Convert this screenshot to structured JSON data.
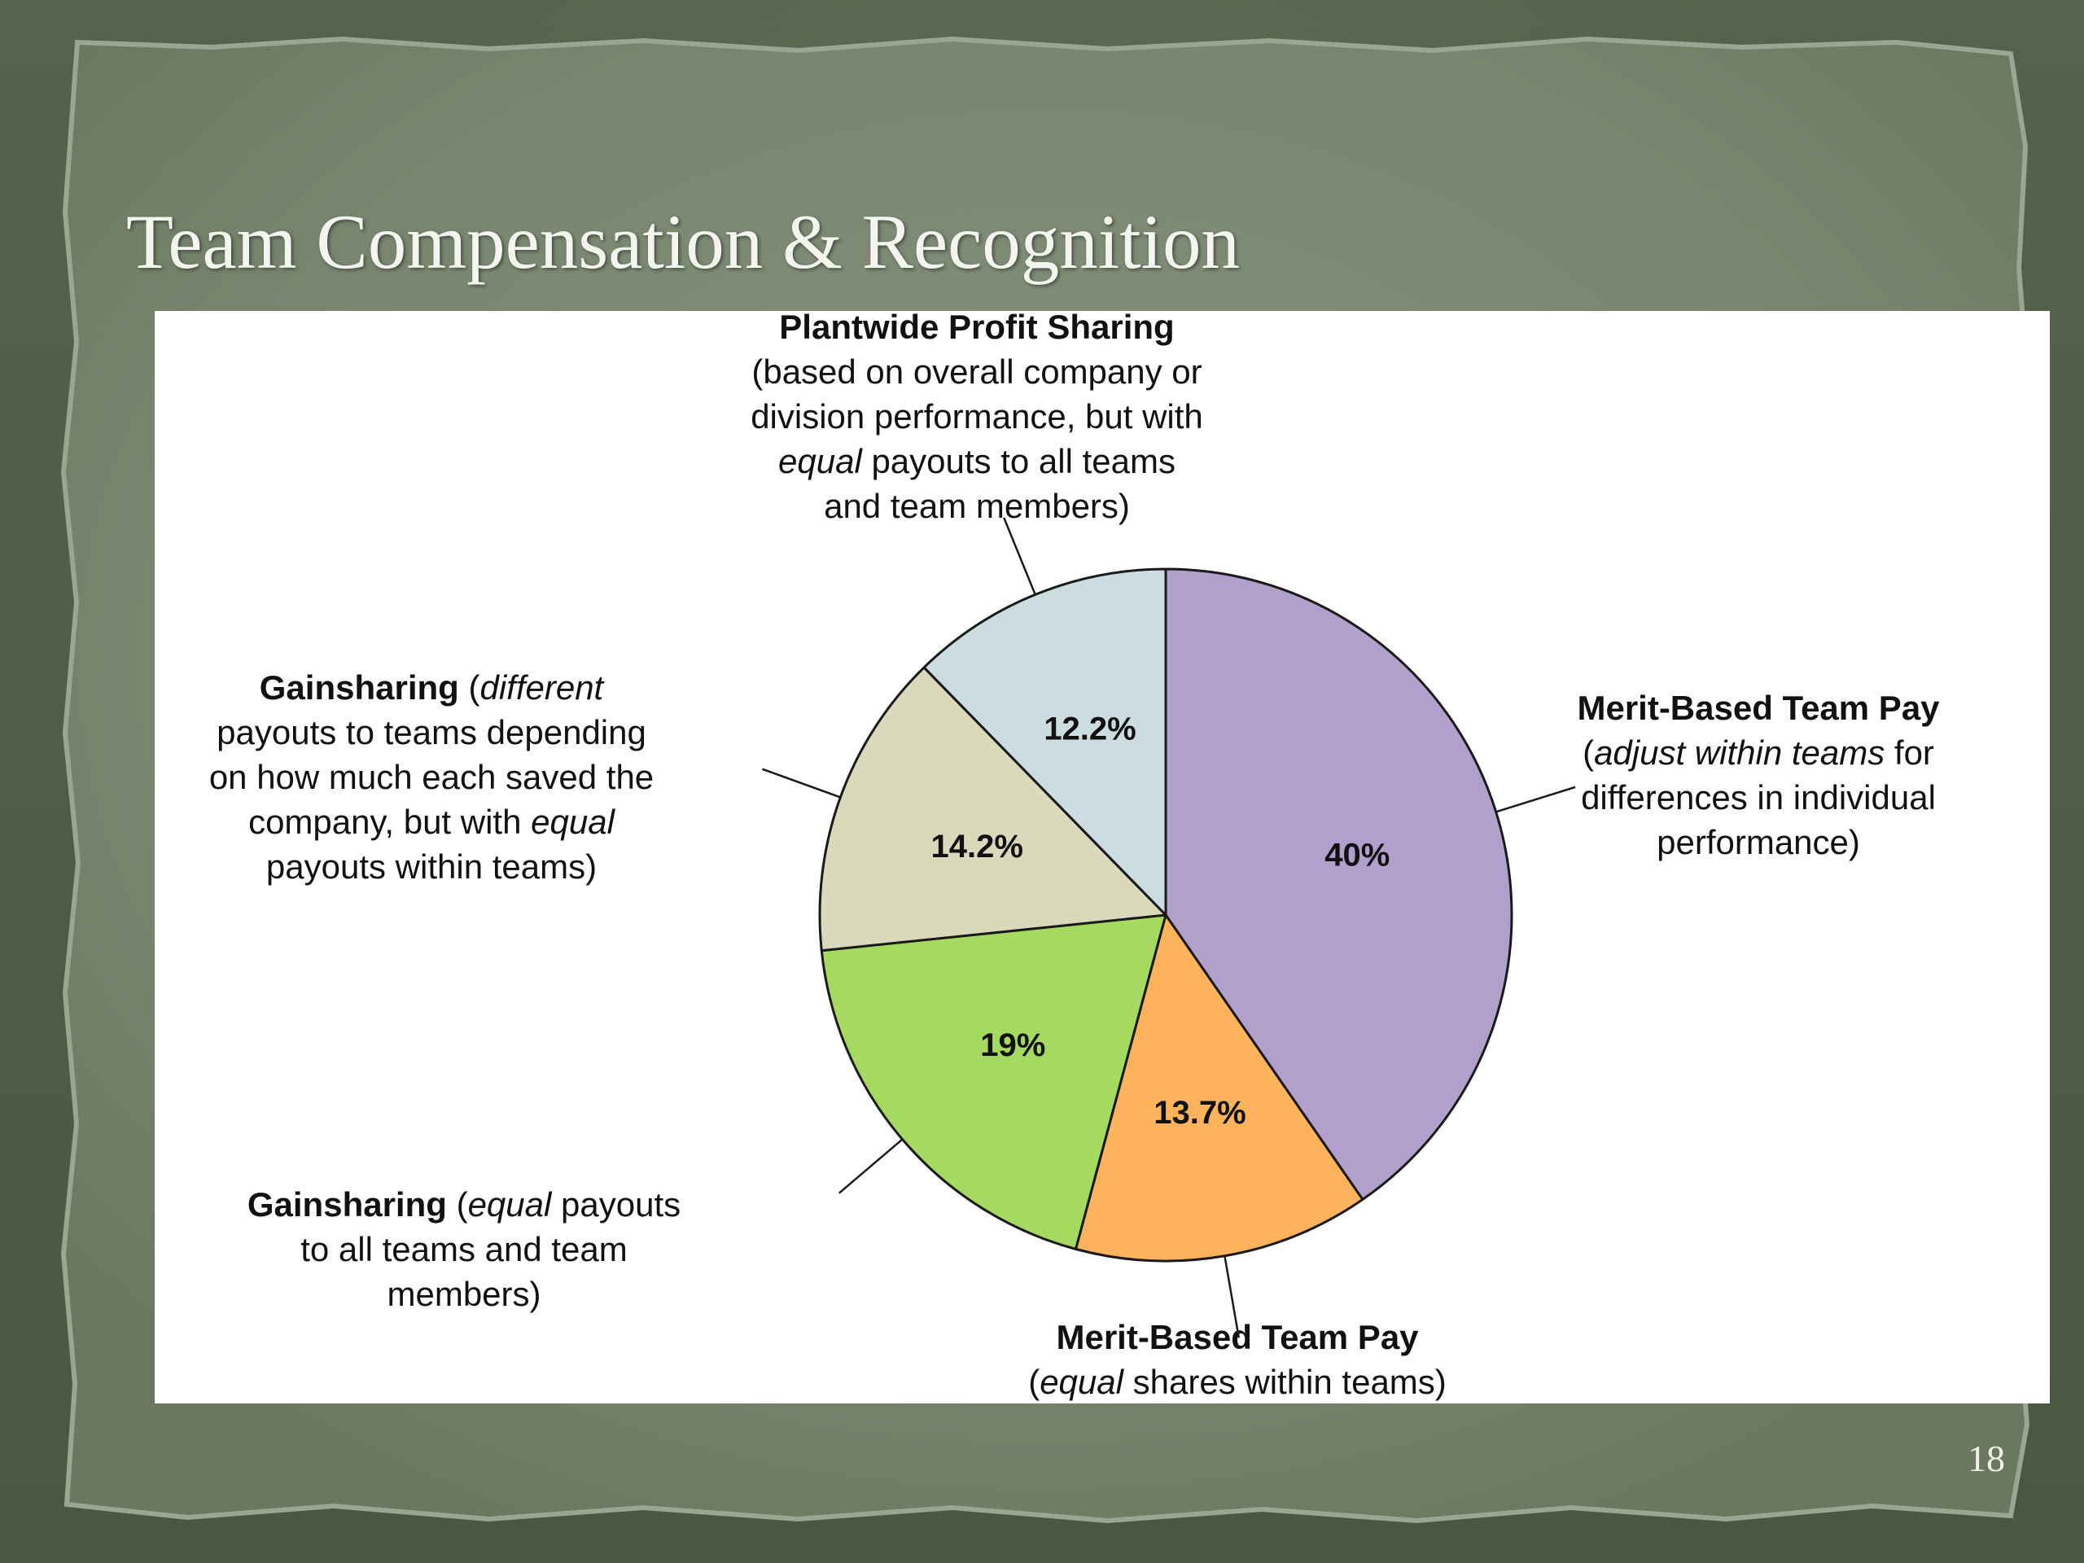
{
  "slide": {
    "title": "Team Compensation & Recognition",
    "page_number": "18"
  },
  "colors": {
    "background": "#4f5e46",
    "paper": "#7b8873",
    "slice_purple": "#b19fcc",
    "slice_orange": "#fdb25c",
    "slice_green": "#a6d95f",
    "slice_tan": "#dbd9bb",
    "slice_blue": "#cbdde0"
  },
  "chart_data": {
    "type": "pie",
    "title": "",
    "start": "top",
    "direction": "clockwise",
    "slices": [
      {
        "name": "Merit-Based Team Pay (adjust within teams for differences in individual performance)",
        "value": 40,
        "label": "40%",
        "color": "#b19fcc"
      },
      {
        "name": "Merit-Based Team Pay (equal shares within teams)",
        "value": 13.7,
        "label": "13.7%",
        "color": "#fdb25c"
      },
      {
        "name": "Gainsharing (equal payouts to all teams and team members)",
        "value": 19,
        "label": "19%",
        "color": "#a6d95f"
      },
      {
        "name": "Gainsharing (different payouts to teams depending on how much each saved the company, but with equal payouts within teams)",
        "value": 14.2,
        "label": "14.2%",
        "color": "#dbd9bb"
      },
      {
        "name": "Plantwide Profit Sharing (based on overall company or division performance, but with equal payouts to all teams and team members)",
        "value": 12.2,
        "label": "12.2%",
        "color": "#cbdde0"
      }
    ],
    "callouts": [
      {
        "lines": [
          [
            {
              "text": "Merit-Based Team Pay",
              "style": "bold"
            }
          ],
          [
            {
              "text": "(",
              "style": "normal"
            },
            {
              "text": "adjust within teams",
              "style": "italic"
            },
            {
              "text": " for",
              "style": "normal"
            }
          ],
          [
            {
              "text": "differences in individual",
              "style": "normal"
            }
          ],
          [
            {
              "text": "performance)",
              "style": "normal"
            }
          ]
        ]
      },
      {
        "lines": [
          [
            {
              "text": "Merit-Based Team Pay",
              "style": "bold"
            }
          ],
          [
            {
              "text": "(",
              "style": "normal"
            },
            {
              "text": "equal",
              "style": "italic"
            },
            {
              "text": " shares within teams)",
              "style": "normal"
            }
          ]
        ]
      },
      {
        "lines": [
          [
            {
              "text": "Gainsharing",
              "style": "bold"
            },
            {
              "text": " (",
              "style": "normal"
            },
            {
              "text": "equal",
              "style": "italic"
            },
            {
              "text": " payouts",
              "style": "normal"
            }
          ],
          [
            {
              "text": "to all teams and team",
              "style": "normal"
            }
          ],
          [
            {
              "text": "members)",
              "style": "normal"
            }
          ]
        ]
      },
      {
        "lines": [
          [
            {
              "text": "Gainsharing",
              "style": "bold"
            },
            {
              "text": " (",
              "style": "normal"
            },
            {
              "text": "different",
              "style": "italic"
            }
          ],
          [
            {
              "text": "payouts to teams depending",
              "style": "normal"
            }
          ],
          [
            {
              "text": "on how much each saved the",
              "style": "normal"
            }
          ],
          [
            {
              "text": "company, but with ",
              "style": "normal"
            },
            {
              "text": "equal",
              "style": "italic"
            }
          ],
          [
            {
              "text": "payouts within teams)",
              "style": "normal"
            }
          ]
        ]
      },
      {
        "lines": [
          [
            {
              "text": "Plantwide Profit Sharing",
              "style": "bold"
            }
          ],
          [
            {
              "text": "(based on overall company or",
              "style": "normal"
            }
          ],
          [
            {
              "text": "division performance, but with",
              "style": "normal"
            }
          ],
          [
            {
              "text": "equal",
              "style": "italic"
            },
            {
              "text": " payouts to all teams",
              "style": "normal"
            }
          ],
          [
            {
              "text": "and team members)",
              "style": "normal"
            }
          ]
        ]
      }
    ]
  }
}
